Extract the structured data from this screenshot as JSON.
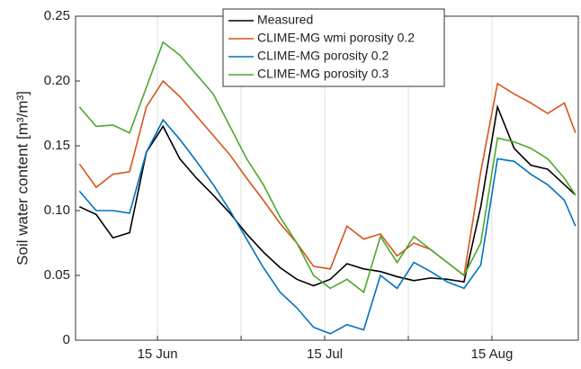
{
  "chart_data": {
    "type": "line",
    "ylabel": "Soil water content [m³/m³]",
    "x": [
      152,
      155,
      158,
      161,
      164,
      167,
      170,
      173,
      176,
      179,
      182,
      185,
      188,
      191,
      194,
      197,
      200,
      203,
      206,
      209,
      212,
      215,
      218,
      221,
      224,
      227,
      230,
      233,
      236,
      239,
      241
    ],
    "xlim": [
      151.3,
      241.5
    ],
    "xticks": [
      {
        "value": 166,
        "label": "15 Jun"
      },
      {
        "value": 181,
        "label": null
      },
      {
        "value": 196,
        "label": "15 Jul"
      },
      {
        "value": 211,
        "label": null
      },
      {
        "value": 226,
        "label": "15 Aug"
      }
    ],
    "ylim": [
      0,
      0.25
    ],
    "yticks": [
      {
        "value": 0,
        "label": "0"
      },
      {
        "value": 0.05,
        "label": "0.05"
      },
      {
        "value": 0.1,
        "label": "0.10"
      },
      {
        "value": 0.15,
        "label": "0.15"
      },
      {
        "value": 0.2,
        "label": "0.20"
      },
      {
        "value": 0.25,
        "label": "0.25"
      }
    ],
    "grid": "x",
    "legend": "top",
    "series": [
      {
        "name": "Measured",
        "color": "#000000",
        "values": [
          0.103,
          0.097,
          0.079,
          0.083,
          0.145,
          0.165,
          0.14,
          0.125,
          0.112,
          0.098,
          0.082,
          0.068,
          0.056,
          0.047,
          0.042,
          0.047,
          0.059,
          0.055,
          0.053,
          0.049,
          0.046,
          0.048,
          0.047,
          0.045,
          0.103,
          0.18,
          0.148,
          0.135,
          0.132,
          0.12,
          0.112
        ]
      },
      {
        "name": "CLIME-MG wmi porosity 0.2",
        "color": "#d95319",
        "values": [
          0.136,
          0.118,
          0.128,
          0.13,
          0.18,
          0.2,
          0.188,
          0.173,
          0.158,
          0.143,
          0.125,
          0.108,
          0.09,
          0.075,
          0.057,
          0.055,
          0.088,
          0.078,
          0.082,
          0.065,
          0.075,
          0.07,
          0.06,
          0.05,
          0.13,
          0.198,
          0.19,
          0.183,
          0.175,
          0.183,
          0.16
        ]
      },
      {
        "name": "CLIME-MG porosity 0.2",
        "color": "#0072bd",
        "values": [
          0.115,
          0.1,
          0.1,
          0.098,
          0.145,
          0.17,
          0.155,
          0.138,
          0.12,
          0.1,
          0.078,
          0.056,
          0.037,
          0.025,
          0.01,
          0.005,
          0.012,
          0.008,
          0.05,
          0.04,
          0.06,
          0.053,
          0.045,
          0.04,
          0.058,
          0.14,
          0.138,
          0.128,
          0.12,
          0.108,
          0.088
        ]
      },
      {
        "name": "CLIME-MG porosity 0.3",
        "color": "#4ea72e",
        "values": [
          0.18,
          0.165,
          0.166,
          0.16,
          0.195,
          0.23,
          0.22,
          0.205,
          0.19,
          0.165,
          0.14,
          0.12,
          0.095,
          0.075,
          0.05,
          0.04,
          0.047,
          0.037,
          0.08,
          0.06,
          0.08,
          0.07,
          0.06,
          0.05,
          0.075,
          0.156,
          0.153,
          0.148,
          0.14,
          0.125,
          0.112
        ]
      }
    ]
  }
}
